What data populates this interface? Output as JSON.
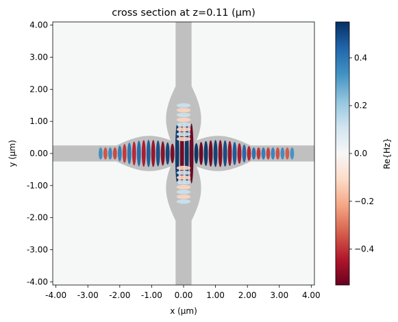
{
  "chart_data": {
    "type": "heatmap",
    "title": "cross section at z=0.11 (µm)",
    "xlabel": "x (µm)",
    "ylabel": "y (µm)",
    "xlim": [
      -4.1,
      4.1
    ],
    "ylim": [
      -4.1,
      4.1
    ],
    "x_ticks": [
      -4,
      -3,
      -2,
      -1,
      0,
      1,
      2,
      3,
      4
    ],
    "x_tick_labels": [
      "-4.00",
      "-3.00",
      "-2.00",
      "-1.00",
      "0.00",
      "1.00",
      "2.00",
      "3.00",
      "4.00"
    ],
    "y_ticks": [
      4,
      3,
      2,
      1,
      0,
      -1,
      -2,
      -3,
      -4
    ],
    "y_tick_labels": [
      "4.00",
      "3.00",
      "2.00",
      "1.00",
      "0.00",
      "-1.00",
      "-2.00",
      "-3.00",
      "-4.00"
    ],
    "colorbar": {
      "label": "Re{Hz}",
      "range": [
        -0.55,
        0.55
      ],
      "ticks": [
        0.4,
        0.2,
        0.0,
        -0.2,
        -0.4
      ],
      "tick_labels": [
        "0.4",
        "0.2",
        "0.0",
        "−0.2",
        "−0.4"
      ],
      "colormap": "RdBu",
      "colormap_stops": [
        "#67001f",
        "#b2182b",
        "#d6604d",
        "#f4a582",
        "#fddbc7",
        "#f7f7f7",
        "#d1e5f0",
        "#92c5de",
        "#4393c3",
        "#2166ac",
        "#053061"
      ]
    },
    "structure": {
      "color": "#c0c0c0",
      "horizontal_waveguide": {
        "x": [
          -4.1,
          4.1
        ],
        "y": [
          -0.25,
          0.25
        ]
      },
      "vertical_waveguide": {
        "x": [
          -0.25,
          0.25
        ],
        "y": [
          -4.1,
          4.1
        ]
      },
      "horizontal_taper": {
        "x": [
          -2.1,
          2.1
        ],
        "half_width_max": 0.55
      },
      "vertical_taper": {
        "y": [
          -2.1,
          2.1
        ],
        "half_width_max": 0.55
      }
    },
    "field_profile": {
      "axis": "x",
      "x_range": [
        -2.6,
        3.4
      ],
      "period_um": 0.3,
      "peak_amplitude": 0.55,
      "center_vertical_extent": [
        -1.5,
        1.5
      ]
    }
  }
}
